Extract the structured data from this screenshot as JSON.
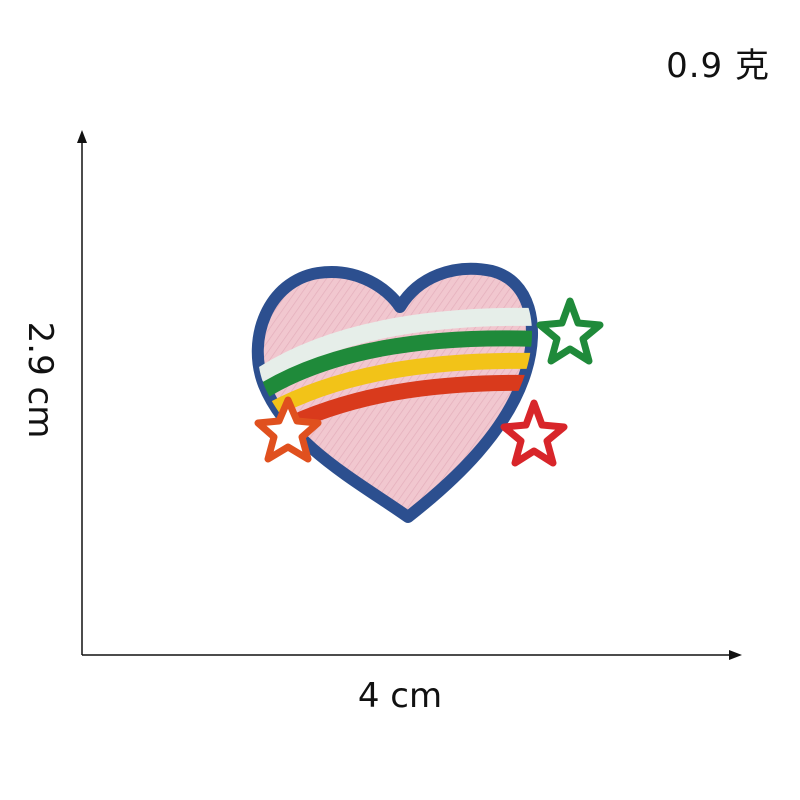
{
  "weight_label": "0.9 克",
  "width_label": "4 cm",
  "height_label": "2.9 cm",
  "colors": {
    "heart_border": "#2c4f8f",
    "heart_fill": "#f1c7cf",
    "rainbow": [
      "#e6eee9",
      "#1f8a3a",
      "#f2c318",
      "#d93a1c"
    ],
    "star_left": "#e0501e",
    "star_right_top": "#1f8a3a",
    "star_right_bottom": "#d8252a"
  }
}
